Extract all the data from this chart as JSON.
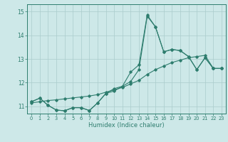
{
  "xlabel": "Humidex (Indice chaleur)",
  "background_color": "#cde8e8",
  "grid_color": "#aacccc",
  "line_color": "#2e7d6e",
  "xlim": [
    -0.5,
    23.5
  ],
  "ylim": [
    10.7,
    15.3
  ],
  "yticks": [
    11,
    12,
    13,
    14,
    15
  ],
  "xticks": [
    0,
    1,
    2,
    3,
    4,
    5,
    6,
    7,
    8,
    9,
    10,
    11,
    12,
    13,
    14,
    15,
    16,
    17,
    18,
    19,
    20,
    21,
    22,
    23
  ],
  "line1_x": [
    0,
    1,
    2,
    3,
    4,
    5,
    6,
    7,
    8,
    9,
    10,
    11,
    12,
    13,
    14,
    15,
    16,
    17,
    18,
    19,
    20,
    21,
    22,
    23
  ],
  "line1_y": [
    11.2,
    11.35,
    11.05,
    10.85,
    10.82,
    10.95,
    10.95,
    10.83,
    11.15,
    11.55,
    11.65,
    11.85,
    12.45,
    12.75,
    14.85,
    14.35,
    13.3,
    13.4,
    13.35,
    13.1,
    12.55,
    13.05,
    12.6,
    12.6
  ],
  "line2_x": [
    0,
    1,
    2,
    3,
    4,
    5,
    6,
    7,
    8,
    9,
    10,
    11,
    12,
    13,
    14,
    15,
    16,
    17,
    18,
    19,
    20,
    21,
    22,
    23
  ],
  "line2_y": [
    11.2,
    11.35,
    11.05,
    10.85,
    10.82,
    10.95,
    10.95,
    10.83,
    11.15,
    11.55,
    11.75,
    11.85,
    12.05,
    12.55,
    14.8,
    14.35,
    13.3,
    13.4,
    13.35,
    13.1,
    12.55,
    13.05,
    12.6,
    12.6
  ],
  "line3_x": [
    0,
    1,
    2,
    3,
    4,
    5,
    6,
    7,
    8,
    9,
    10,
    11,
    12,
    13,
    14,
    15,
    16,
    17,
    18,
    19,
    20,
    21,
    22,
    23
  ],
  "line3_y": [
    11.15,
    11.2,
    11.25,
    11.28,
    11.32,
    11.36,
    11.4,
    11.44,
    11.5,
    11.6,
    11.7,
    11.8,
    11.95,
    12.1,
    12.35,
    12.55,
    12.7,
    12.85,
    12.95,
    13.05,
    13.1,
    13.15,
    12.6,
    12.6
  ]
}
